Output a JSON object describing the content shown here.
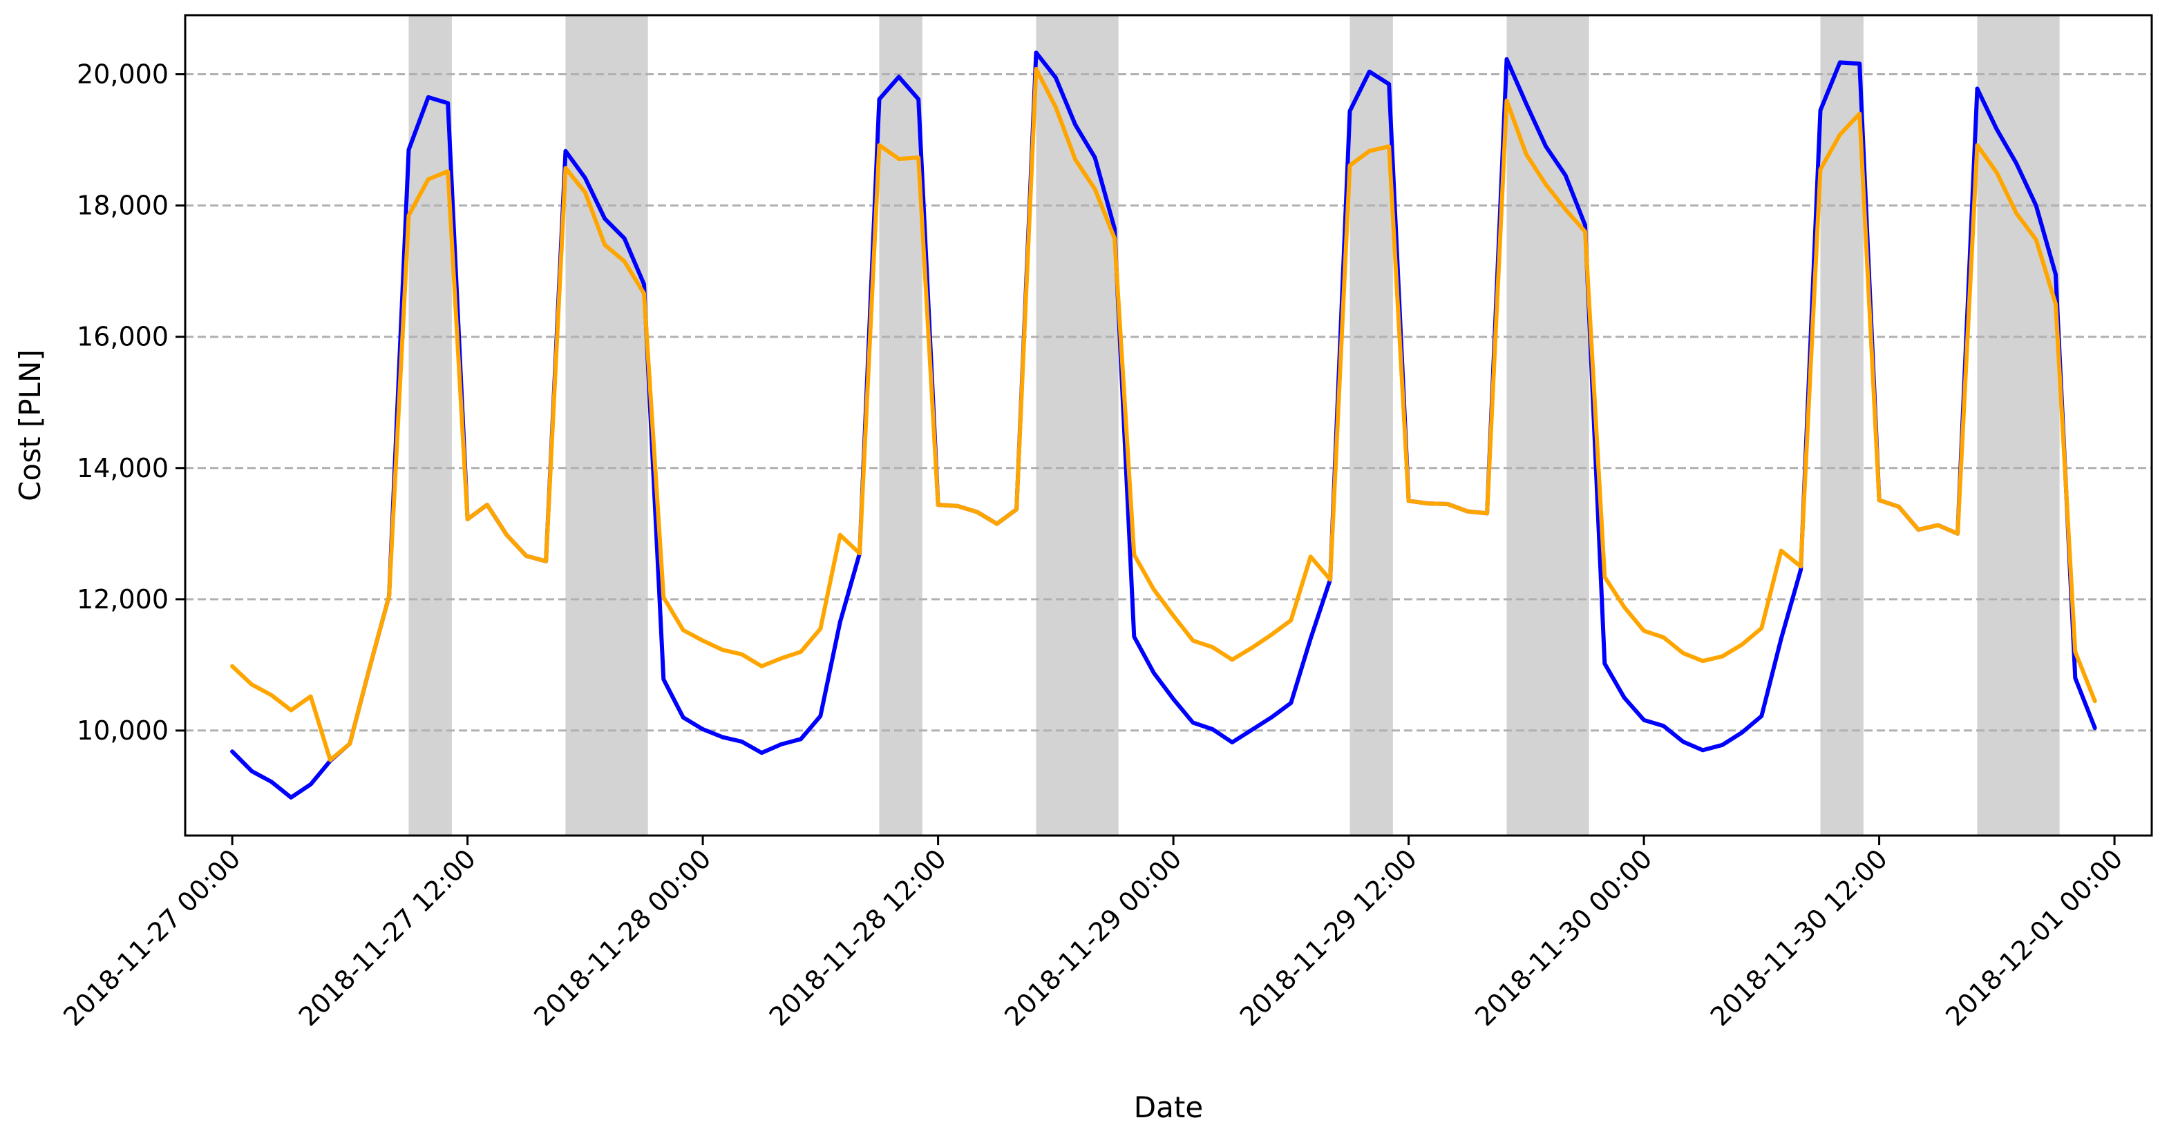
{
  "chart_data": {
    "type": "line",
    "title": "",
    "xlabel": "Date",
    "ylabel": "Cost [PLN]",
    "ylim": [
      8400,
      20900
    ],
    "xlim": [
      "2018-11-26 21:36",
      "2018-12-01 01:54"
    ],
    "yticks": [
      10000,
      12000,
      14000,
      16000,
      18000,
      20000
    ],
    "ytick_labels": [
      "10,000",
      "12,000",
      "14,000",
      "16,000",
      "18,000",
      "20,000"
    ],
    "xticks": [
      "2018-11-27 00:00",
      "2018-11-27 12:00",
      "2018-11-28 00:00",
      "2018-11-28 12:00",
      "2018-11-29 00:00",
      "2018-11-29 12:00",
      "2018-11-30 00:00",
      "2018-11-30 12:00",
      "2018-12-01 00:00"
    ],
    "xtick_labels": [
      "2018-11-27 00:00",
      "2018-11-27 12:00",
      "2018-11-28 00:00",
      "2018-11-28 12:00",
      "2018-11-29 00:00",
      "2018-11-29 12:00",
      "2018-11-30 00:00",
      "2018-11-30 12:00",
      "2018-12-01 00:00"
    ],
    "grid": "y-dashed",
    "shaded_periods": [
      [
        "2018-11-27 09:00",
        "2018-11-27 11:12"
      ],
      [
        "2018-11-27 17:00",
        "2018-11-27 21:12"
      ],
      [
        "2018-11-28 09:00",
        "2018-11-28 11:12"
      ],
      [
        "2018-11-28 17:00",
        "2018-11-28 21:12"
      ],
      [
        "2018-11-29 09:00",
        "2018-11-29 11:12"
      ],
      [
        "2018-11-29 17:00",
        "2018-11-29 21:12"
      ],
      [
        "2018-11-30 09:00",
        "2018-11-30 11:12"
      ],
      [
        "2018-11-30 17:00",
        "2018-11-30 21:12"
      ]
    ],
    "shade_color": "#d3d3d3",
    "series": [
      {
        "color": "#0000ff",
        "points": [
          [
            "2018-11-27 00:00",
            9680
          ],
          [
            "2018-11-27 01:00",
            9380
          ],
          [
            "2018-11-27 02:00",
            9220
          ],
          [
            "2018-11-27 03:00",
            8980
          ],
          [
            "2018-11-27 04:00",
            9180
          ],
          [
            "2018-11-27 05:00",
            9540
          ],
          [
            "2018-11-27 06:00",
            9800
          ],
          [
            "2018-11-27 07:00",
            10950
          ],
          [
            "2018-11-27 08:00",
            12050
          ],
          [
            "2018-11-27 09:00",
            18850
          ],
          [
            "2018-11-27 10:00",
            19650
          ],
          [
            "2018-11-27 11:00",
            19560
          ],
          [
            "2018-11-27 12:00",
            13220
          ],
          [
            "2018-11-27 13:00",
            13440
          ],
          [
            "2018-11-27 14:00",
            12980
          ],
          [
            "2018-11-27 15:00",
            12660
          ],
          [
            "2018-11-27 16:00",
            12580
          ],
          [
            "2018-11-27 17:00",
            18830
          ],
          [
            "2018-11-27 18:00",
            18420
          ],
          [
            "2018-11-27 19:00",
            17800
          ],
          [
            "2018-11-27 20:00",
            17500
          ],
          [
            "2018-11-27 21:00",
            16800
          ],
          [
            "2018-11-27 22:00",
            10780
          ],
          [
            "2018-11-27 23:00",
            10200
          ],
          [
            "2018-11-28 00:00",
            10020
          ],
          [
            "2018-11-28 01:00",
            9900
          ],
          [
            "2018-11-28 02:00",
            9830
          ],
          [
            "2018-11-28 03:00",
            9660
          ],
          [
            "2018-11-28 04:00",
            9790
          ],
          [
            "2018-11-28 05:00",
            9870
          ],
          [
            "2018-11-28 06:00",
            10220
          ],
          [
            "2018-11-28 07:00",
            11650
          ],
          [
            "2018-11-28 08:00",
            12700
          ],
          [
            "2018-11-28 09:00",
            19620
          ],
          [
            "2018-11-28 10:00",
            19960
          ],
          [
            "2018-11-28 11:00",
            19620
          ],
          [
            "2018-11-28 12:00",
            13440
          ],
          [
            "2018-11-28 13:00",
            13420
          ],
          [
            "2018-11-28 14:00",
            13330
          ],
          [
            "2018-11-28 15:00",
            13150
          ],
          [
            "2018-11-28 16:00",
            13370
          ],
          [
            "2018-11-28 17:00",
            20330
          ],
          [
            "2018-11-28 18:00",
            19950
          ],
          [
            "2018-11-28 19:00",
            19230
          ],
          [
            "2018-11-28 20:00",
            18730
          ],
          [
            "2018-11-28 21:00",
            17650
          ],
          [
            "2018-11-28 22:00",
            11430
          ],
          [
            "2018-11-28 23:00",
            10880
          ],
          [
            "2018-11-29 00:00",
            10480
          ],
          [
            "2018-11-29 01:00",
            10120
          ],
          [
            "2018-11-29 02:00",
            10020
          ],
          [
            "2018-11-29 03:00",
            9820
          ],
          [
            "2018-11-29 04:00",
            10010
          ],
          [
            "2018-11-29 05:00",
            10200
          ],
          [
            "2018-11-29 06:00",
            10420
          ],
          [
            "2018-11-29 07:00",
            11400
          ],
          [
            "2018-11-29 08:00",
            12300
          ],
          [
            "2018-11-29 09:00",
            19440
          ],
          [
            "2018-11-29 10:00",
            20040
          ],
          [
            "2018-11-29 11:00",
            19850
          ],
          [
            "2018-11-29 12:00",
            13500
          ],
          [
            "2018-11-29 13:00",
            13460
          ],
          [
            "2018-11-29 14:00",
            13450
          ],
          [
            "2018-11-29 15:00",
            13340
          ],
          [
            "2018-11-29 16:00",
            13310
          ],
          [
            "2018-11-29 17:00",
            20230
          ],
          [
            "2018-11-29 18:00",
            19550
          ],
          [
            "2018-11-29 19:00",
            18900
          ],
          [
            "2018-11-29 20:00",
            18460
          ],
          [
            "2018-11-29 21:00",
            17700
          ],
          [
            "2018-11-29 22:00",
            11020
          ],
          [
            "2018-11-29 23:00",
            10500
          ],
          [
            "2018-11-30 00:00",
            10160
          ],
          [
            "2018-11-30 01:00",
            10070
          ],
          [
            "2018-11-30 02:00",
            9830
          ],
          [
            "2018-11-30 03:00",
            9700
          ],
          [
            "2018-11-30 04:00",
            9780
          ],
          [
            "2018-11-30 05:00",
            9970
          ],
          [
            "2018-11-30 06:00",
            10220
          ],
          [
            "2018-11-30 07:00",
            11400
          ],
          [
            "2018-11-30 08:00",
            12450
          ],
          [
            "2018-11-30 09:00",
            19450
          ],
          [
            "2018-11-30 10:00",
            20180
          ],
          [
            "2018-11-30 11:00",
            20160
          ],
          [
            "2018-11-30 12:00",
            13510
          ],
          [
            "2018-11-30 13:00",
            13410
          ],
          [
            "2018-11-30 14:00",
            13060
          ],
          [
            "2018-11-30 15:00",
            13130
          ],
          [
            "2018-11-30 16:00",
            13000
          ],
          [
            "2018-11-30 17:00",
            19780
          ],
          [
            "2018-11-30 18:00",
            19160
          ],
          [
            "2018-11-30 19:00",
            18640
          ],
          [
            "2018-11-30 20:00",
            18000
          ],
          [
            "2018-11-30 21:00",
            16950
          ],
          [
            "2018-11-30 22:00",
            10800
          ],
          [
            "2018-11-30 23:00",
            10040
          ]
        ]
      },
      {
        "color": "#ffa500",
        "points": [
          [
            "2018-11-27 00:00",
            10980
          ],
          [
            "2018-11-27 01:00",
            10700
          ],
          [
            "2018-11-27 02:00",
            10540
          ],
          [
            "2018-11-27 03:00",
            10310
          ],
          [
            "2018-11-27 04:00",
            10520
          ],
          [
            "2018-11-27 05:00",
            9550
          ],
          [
            "2018-11-27 06:00",
            9800
          ],
          [
            "2018-11-27 07:00",
            10950
          ],
          [
            "2018-11-27 08:00",
            12050
          ],
          [
            "2018-11-27 09:00",
            17850
          ],
          [
            "2018-11-27 10:00",
            18400
          ],
          [
            "2018-11-27 11:00",
            18520
          ],
          [
            "2018-11-27 12:00",
            13220
          ],
          [
            "2018-11-27 13:00",
            13440
          ],
          [
            "2018-11-27 14:00",
            12980
          ],
          [
            "2018-11-27 15:00",
            12660
          ],
          [
            "2018-11-27 16:00",
            12580
          ],
          [
            "2018-11-27 17:00",
            18570
          ],
          [
            "2018-11-27 18:00",
            18200
          ],
          [
            "2018-11-27 19:00",
            17400
          ],
          [
            "2018-11-27 20:00",
            17150
          ],
          [
            "2018-11-27 21:00",
            16660
          ],
          [
            "2018-11-27 22:00",
            12030
          ],
          [
            "2018-11-27 23:00",
            11530
          ],
          [
            "2018-11-28 00:00",
            11370
          ],
          [
            "2018-11-28 01:00",
            11230
          ],
          [
            "2018-11-28 02:00",
            11160
          ],
          [
            "2018-11-28 03:00",
            10980
          ],
          [
            "2018-11-28 04:00",
            11100
          ],
          [
            "2018-11-28 05:00",
            11200
          ],
          [
            "2018-11-28 06:00",
            11550
          ],
          [
            "2018-11-28 07:00",
            12980
          ],
          [
            "2018-11-28 08:00",
            12700
          ],
          [
            "2018-11-28 09:00",
            18920
          ],
          [
            "2018-11-28 10:00",
            18710
          ],
          [
            "2018-11-28 11:00",
            18730
          ],
          [
            "2018-11-28 12:00",
            13440
          ],
          [
            "2018-11-28 13:00",
            13420
          ],
          [
            "2018-11-28 14:00",
            13330
          ],
          [
            "2018-11-28 15:00",
            13150
          ],
          [
            "2018-11-28 16:00",
            13370
          ],
          [
            "2018-11-28 17:00",
            20080
          ],
          [
            "2018-11-28 18:00",
            19500
          ],
          [
            "2018-11-28 19:00",
            18700
          ],
          [
            "2018-11-28 20:00",
            18250
          ],
          [
            "2018-11-28 21:00",
            17500
          ],
          [
            "2018-11-28 22:00",
            12680
          ],
          [
            "2018-11-28 23:00",
            12150
          ],
          [
            "2018-11-29 00:00",
            11750
          ],
          [
            "2018-11-29 01:00",
            11370
          ],
          [
            "2018-11-29 02:00",
            11270
          ],
          [
            "2018-11-29 03:00",
            11080
          ],
          [
            "2018-11-29 04:00",
            11260
          ],
          [
            "2018-11-29 05:00",
            11460
          ],
          [
            "2018-11-29 06:00",
            11680
          ],
          [
            "2018-11-29 07:00",
            12650
          ],
          [
            "2018-11-29 08:00",
            12300
          ],
          [
            "2018-11-29 09:00",
            18610
          ],
          [
            "2018-11-29 10:00",
            18830
          ],
          [
            "2018-11-29 11:00",
            18900
          ],
          [
            "2018-11-29 12:00",
            13500
          ],
          [
            "2018-11-29 13:00",
            13460
          ],
          [
            "2018-11-29 14:00",
            13450
          ],
          [
            "2018-11-29 15:00",
            13340
          ],
          [
            "2018-11-29 16:00",
            13310
          ],
          [
            "2018-11-29 17:00",
            19600
          ],
          [
            "2018-11-29 18:00",
            18780
          ],
          [
            "2018-11-29 19:00",
            18320
          ],
          [
            "2018-11-29 20:00",
            17940
          ],
          [
            "2018-11-29 21:00",
            17600
          ],
          [
            "2018-11-29 22:00",
            12340
          ],
          [
            "2018-11-29 23:00",
            11880
          ],
          [
            "2018-11-30 00:00",
            11520
          ],
          [
            "2018-11-30 01:00",
            11420
          ],
          [
            "2018-11-30 02:00",
            11180
          ],
          [
            "2018-11-30 03:00",
            11060
          ],
          [
            "2018-11-30 04:00",
            11130
          ],
          [
            "2018-11-30 05:00",
            11310
          ],
          [
            "2018-11-30 06:00",
            11560
          ],
          [
            "2018-11-30 07:00",
            12740
          ],
          [
            "2018-11-30 08:00",
            12500
          ],
          [
            "2018-11-30 09:00",
            18550
          ],
          [
            "2018-11-30 10:00",
            19080
          ],
          [
            "2018-11-30 11:00",
            19400
          ],
          [
            "2018-11-30 12:00",
            13510
          ],
          [
            "2018-11-30 13:00",
            13410
          ],
          [
            "2018-11-30 14:00",
            13060
          ],
          [
            "2018-11-30 15:00",
            13130
          ],
          [
            "2018-11-30 16:00",
            13000
          ],
          [
            "2018-11-30 17:00",
            18920
          ],
          [
            "2018-11-30 18:00",
            18500
          ],
          [
            "2018-11-30 19:00",
            17880
          ],
          [
            "2018-11-30 20:00",
            17480
          ],
          [
            "2018-11-30 21:00",
            16500
          ],
          [
            "2018-11-30 22:00",
            11200
          ],
          [
            "2018-11-30 23:00",
            10450
          ]
        ]
      }
    ]
  }
}
